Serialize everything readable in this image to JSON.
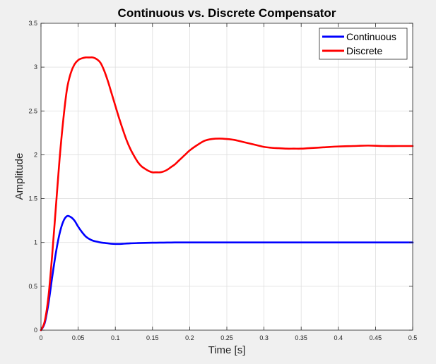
{
  "chart_data": {
    "type": "line",
    "title": "Continuous vs. Discrete Compensator",
    "xlabel": "Time [s]",
    "ylabel": "Amplitude",
    "xlim": [
      0,
      0.5
    ],
    "ylim": [
      0,
      3.5
    ],
    "xticks": [
      0,
      0.05,
      0.1,
      0.15,
      0.2,
      0.25,
      0.3,
      0.35,
      0.4,
      0.45,
      0.5
    ],
    "xtick_labels": [
      "0",
      "0.05",
      "0.1",
      "0.15",
      "0.2",
      "0.25",
      "0.3",
      "0.35",
      "0.4",
      "0.45",
      "0.5"
    ],
    "yticks": [
      0,
      0.5,
      1,
      1.5,
      2,
      2.5,
      3,
      3.5
    ],
    "ytick_labels": [
      "0",
      "0.5",
      "1",
      "1.5",
      "2",
      "2.5",
      "3",
      "3.5"
    ],
    "grid": true,
    "legend_position": "top-right",
    "series": [
      {
        "name": "Continuous",
        "color": "#0000ff",
        "x": [
          0,
          0.005,
          0.01,
          0.015,
          0.02,
          0.025,
          0.03,
          0.035,
          0.04,
          0.045,
          0.05,
          0.055,
          0.06,
          0.065,
          0.07,
          0.075,
          0.08,
          0.085,
          0.09,
          0.095,
          0.1,
          0.105,
          0.11,
          0.12,
          0.13,
          0.14,
          0.15,
          0.16,
          0.17,
          0.18,
          0.19,
          0.2,
          0.22,
          0.25,
          0.3,
          0.35,
          0.4,
          0.45,
          0.5
        ],
        "y": [
          0,
          0.08,
          0.3,
          0.6,
          0.88,
          1.1,
          1.24,
          1.3,
          1.29,
          1.25,
          1.18,
          1.12,
          1.07,
          1.04,
          1.02,
          1.01,
          1.0,
          0.995,
          0.99,
          0.985,
          0.983,
          0.983,
          0.985,
          0.99,
          0.993,
          0.995,
          0.997,
          0.998,
          0.999,
          1.0,
          1.0,
          1.0,
          1.0,
          1.0,
          1.0,
          1.0,
          1.0,
          1.0,
          1.0
        ]
      },
      {
        "name": "Discrete",
        "color": "#ff0000",
        "x": [
          0,
          0.005,
          0.01,
          0.015,
          0.02,
          0.025,
          0.03,
          0.035,
          0.04,
          0.045,
          0.05,
          0.055,
          0.06,
          0.065,
          0.07,
          0.075,
          0.08,
          0.085,
          0.09,
          0.095,
          0.1,
          0.105,
          0.11,
          0.115,
          0.12,
          0.125,
          0.13,
          0.135,
          0.14,
          0.145,
          0.15,
          0.155,
          0.16,
          0.165,
          0.17,
          0.175,
          0.18,
          0.185,
          0.19,
          0.195,
          0.2,
          0.21,
          0.22,
          0.23,
          0.24,
          0.25,
          0.26,
          0.27,
          0.28,
          0.29,
          0.3,
          0.31,
          0.32,
          0.33,
          0.34,
          0.35,
          0.36,
          0.38,
          0.4,
          0.42,
          0.44,
          0.46,
          0.48,
          0.5
        ],
        "y": [
          0,
          0.1,
          0.38,
          0.85,
          1.4,
          1.95,
          2.4,
          2.75,
          2.93,
          3.03,
          3.08,
          3.1,
          3.11,
          3.11,
          3.11,
          3.09,
          3.05,
          2.96,
          2.84,
          2.7,
          2.56,
          2.42,
          2.29,
          2.17,
          2.07,
          1.99,
          1.92,
          1.87,
          1.84,
          1.815,
          1.8,
          1.8,
          1.8,
          1.81,
          1.83,
          1.86,
          1.89,
          1.93,
          1.97,
          2.01,
          2.05,
          2.11,
          2.16,
          2.18,
          2.185,
          2.18,
          2.17,
          2.15,
          2.13,
          2.11,
          2.09,
          2.08,
          2.075,
          2.07,
          2.07,
          2.07,
          2.075,
          2.085,
          2.095,
          2.1,
          2.105,
          2.1,
          2.1,
          2.1
        ]
      }
    ]
  }
}
